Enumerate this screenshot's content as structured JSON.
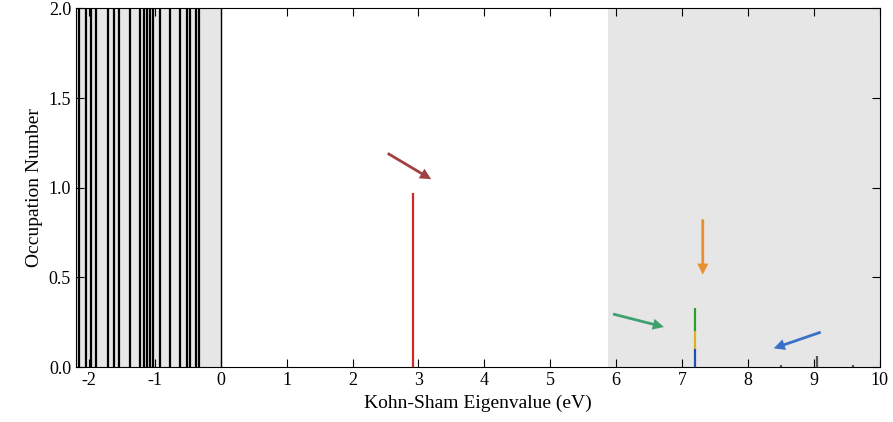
{
  "chart_data": {
    "type": "bar",
    "x_label": "Kohn-Sham Eigenvalue (eV)",
    "y_label": "Occupation Number",
    "xlim": [
      -2.2,
      10
    ],
    "ylim": [
      0,
      2.0
    ],
    "xticks": [
      -2,
      -1,
      0,
      1,
      2,
      3,
      4,
      5,
      6,
      7,
      8,
      9,
      10
    ],
    "yticks": [
      {
        "value": 0,
        "label": "0.0"
      },
      {
        "value": 0.5,
        "label": "0.5"
      },
      {
        "value": 1.0,
        "label": "1.0"
      },
      {
        "value": 1.5,
        "label": "1.5"
      },
      {
        "value": 2.0,
        "label": "2.0"
      }
    ],
    "stacked": true,
    "bands": [
      {
        "range": [
          -2.2,
          0
        ],
        "color": "#e6e6e6"
      },
      {
        "range": [
          5.87,
          10
        ],
        "color": "#e6e6e6"
      }
    ],
    "series": [
      {
        "color": "#000000",
        "x": [
          -2.15,
          -2.05,
          -1.97,
          -1.9,
          -1.72,
          -1.62,
          -1.55,
          -1.38,
          -1.22,
          -1.17,
          -1.12,
          -1.07,
          -1.03,
          -0.92,
          -0.77,
          -0.62,
          -0.52,
          -0.47,
          -0.38,
          -0.33
        ],
        "values": [
          2.0,
          2.0,
          2.0,
          2.0,
          2.0,
          2.0,
          2.0,
          2.0,
          2.0,
          2.0,
          2.0,
          2.0,
          2.0,
          2.0,
          2.0,
          2.0,
          2.0,
          2.0,
          2.0,
          2.0
        ]
      },
      {
        "color": "#d62728",
        "x": [
          2.92
        ],
        "values": [
          0.97
        ]
      },
      {
        "color": "#1f4fb4",
        "x": [
          7.2
        ],
        "values": [
          0.1
        ]
      },
      {
        "color": "#e0b020",
        "x": [
          7.2
        ],
        "values": [
          0.1
        ]
      },
      {
        "color": "#2ca02c",
        "x": [
          7.2
        ],
        "values": [
          0.13
        ]
      },
      {
        "color": "#555555",
        "x": [
          8.5,
          9.05,
          9.6
        ],
        "values": [
          0.01,
          0.06,
          0.01
        ]
      }
    ]
  }
}
